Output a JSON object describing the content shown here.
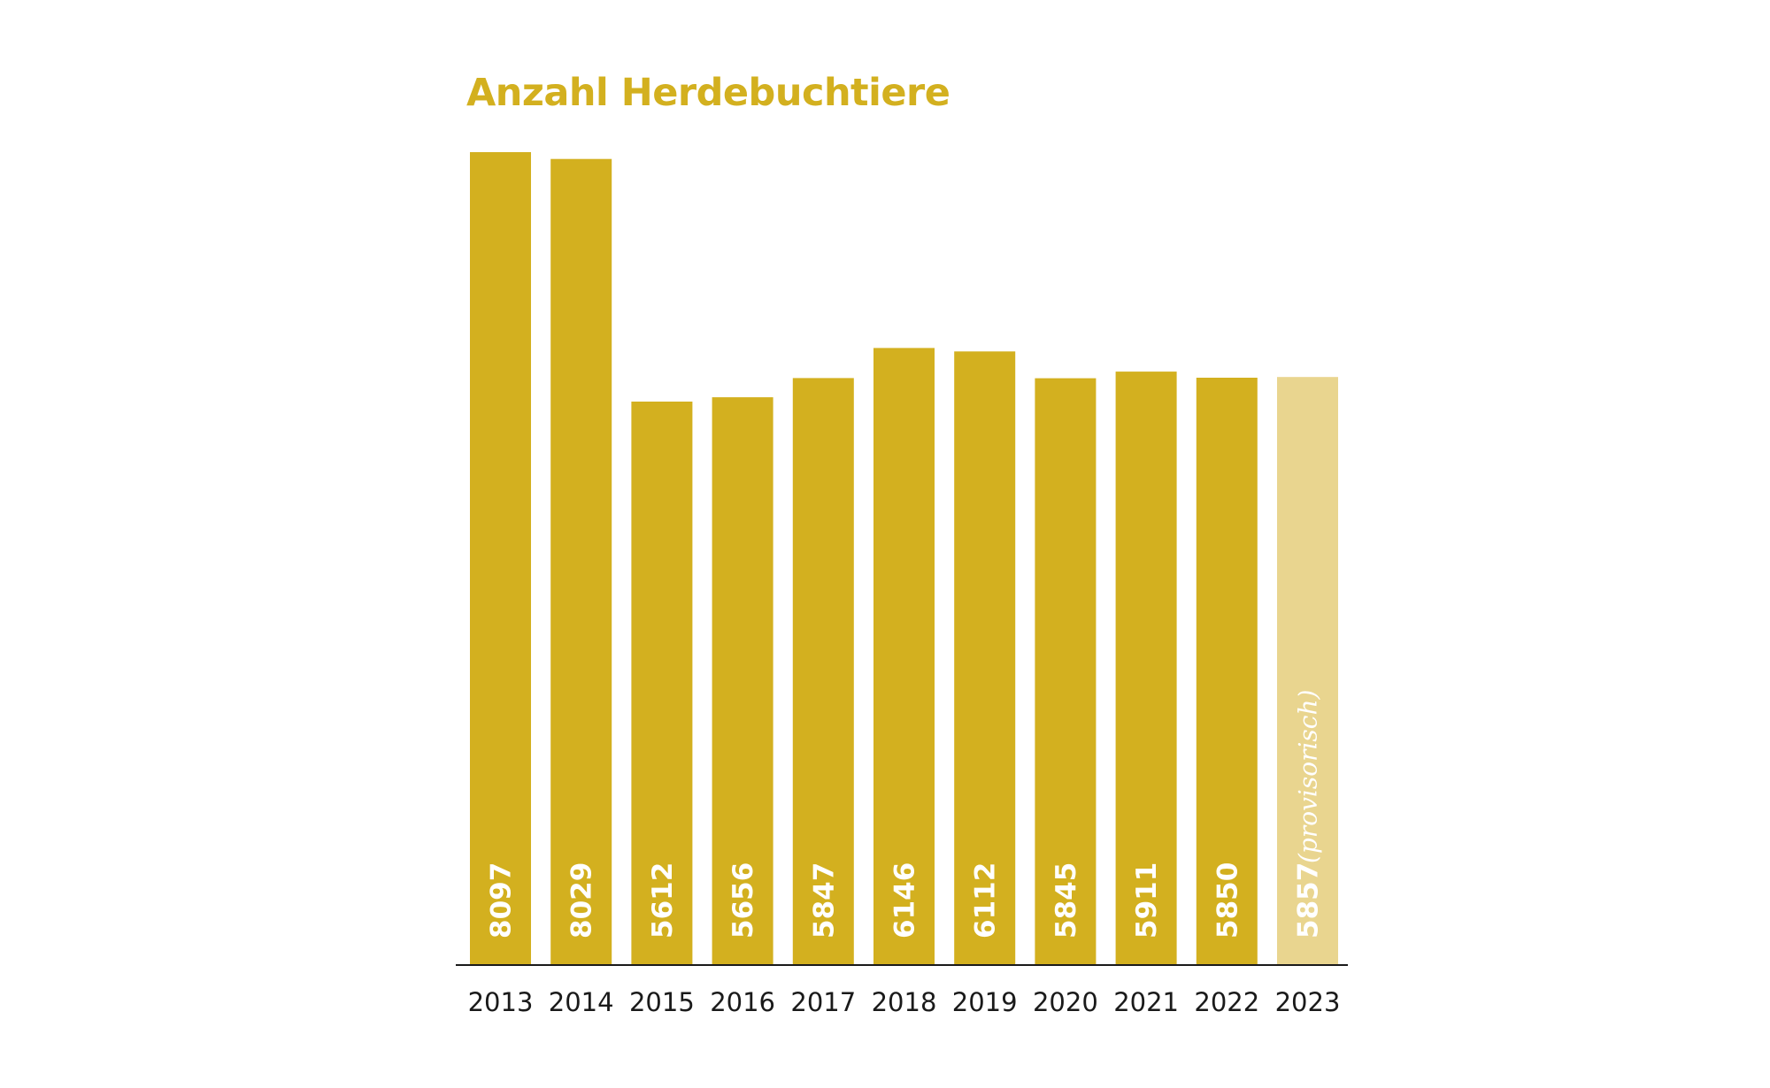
{
  "chart_data": {
    "type": "bar",
    "title": "Anzahl Herdebuchtiere",
    "categories": [
      "2013",
      "2014",
      "2015",
      "2016",
      "2017",
      "2018",
      "2019",
      "2020",
      "2021",
      "2022",
      "2023"
    ],
    "values": [
      8097,
      8029,
      5612,
      5656,
      5847,
      6146,
      6112,
      5845,
      5911,
      5850,
      5857
    ],
    "provisional": [
      false,
      false,
      false,
      false,
      false,
      false,
      false,
      false,
      false,
      false,
      true
    ],
    "provisional_note": "(provisorisch)",
    "ylim": [
      0,
      8097
    ],
    "grid": false,
    "colors": {
      "bar": "#d3b01f",
      "bar_provisional": "#e9d58f",
      "title": "#d3b01f",
      "axis": "#1a1a1a",
      "label": "#ffffff"
    }
  }
}
